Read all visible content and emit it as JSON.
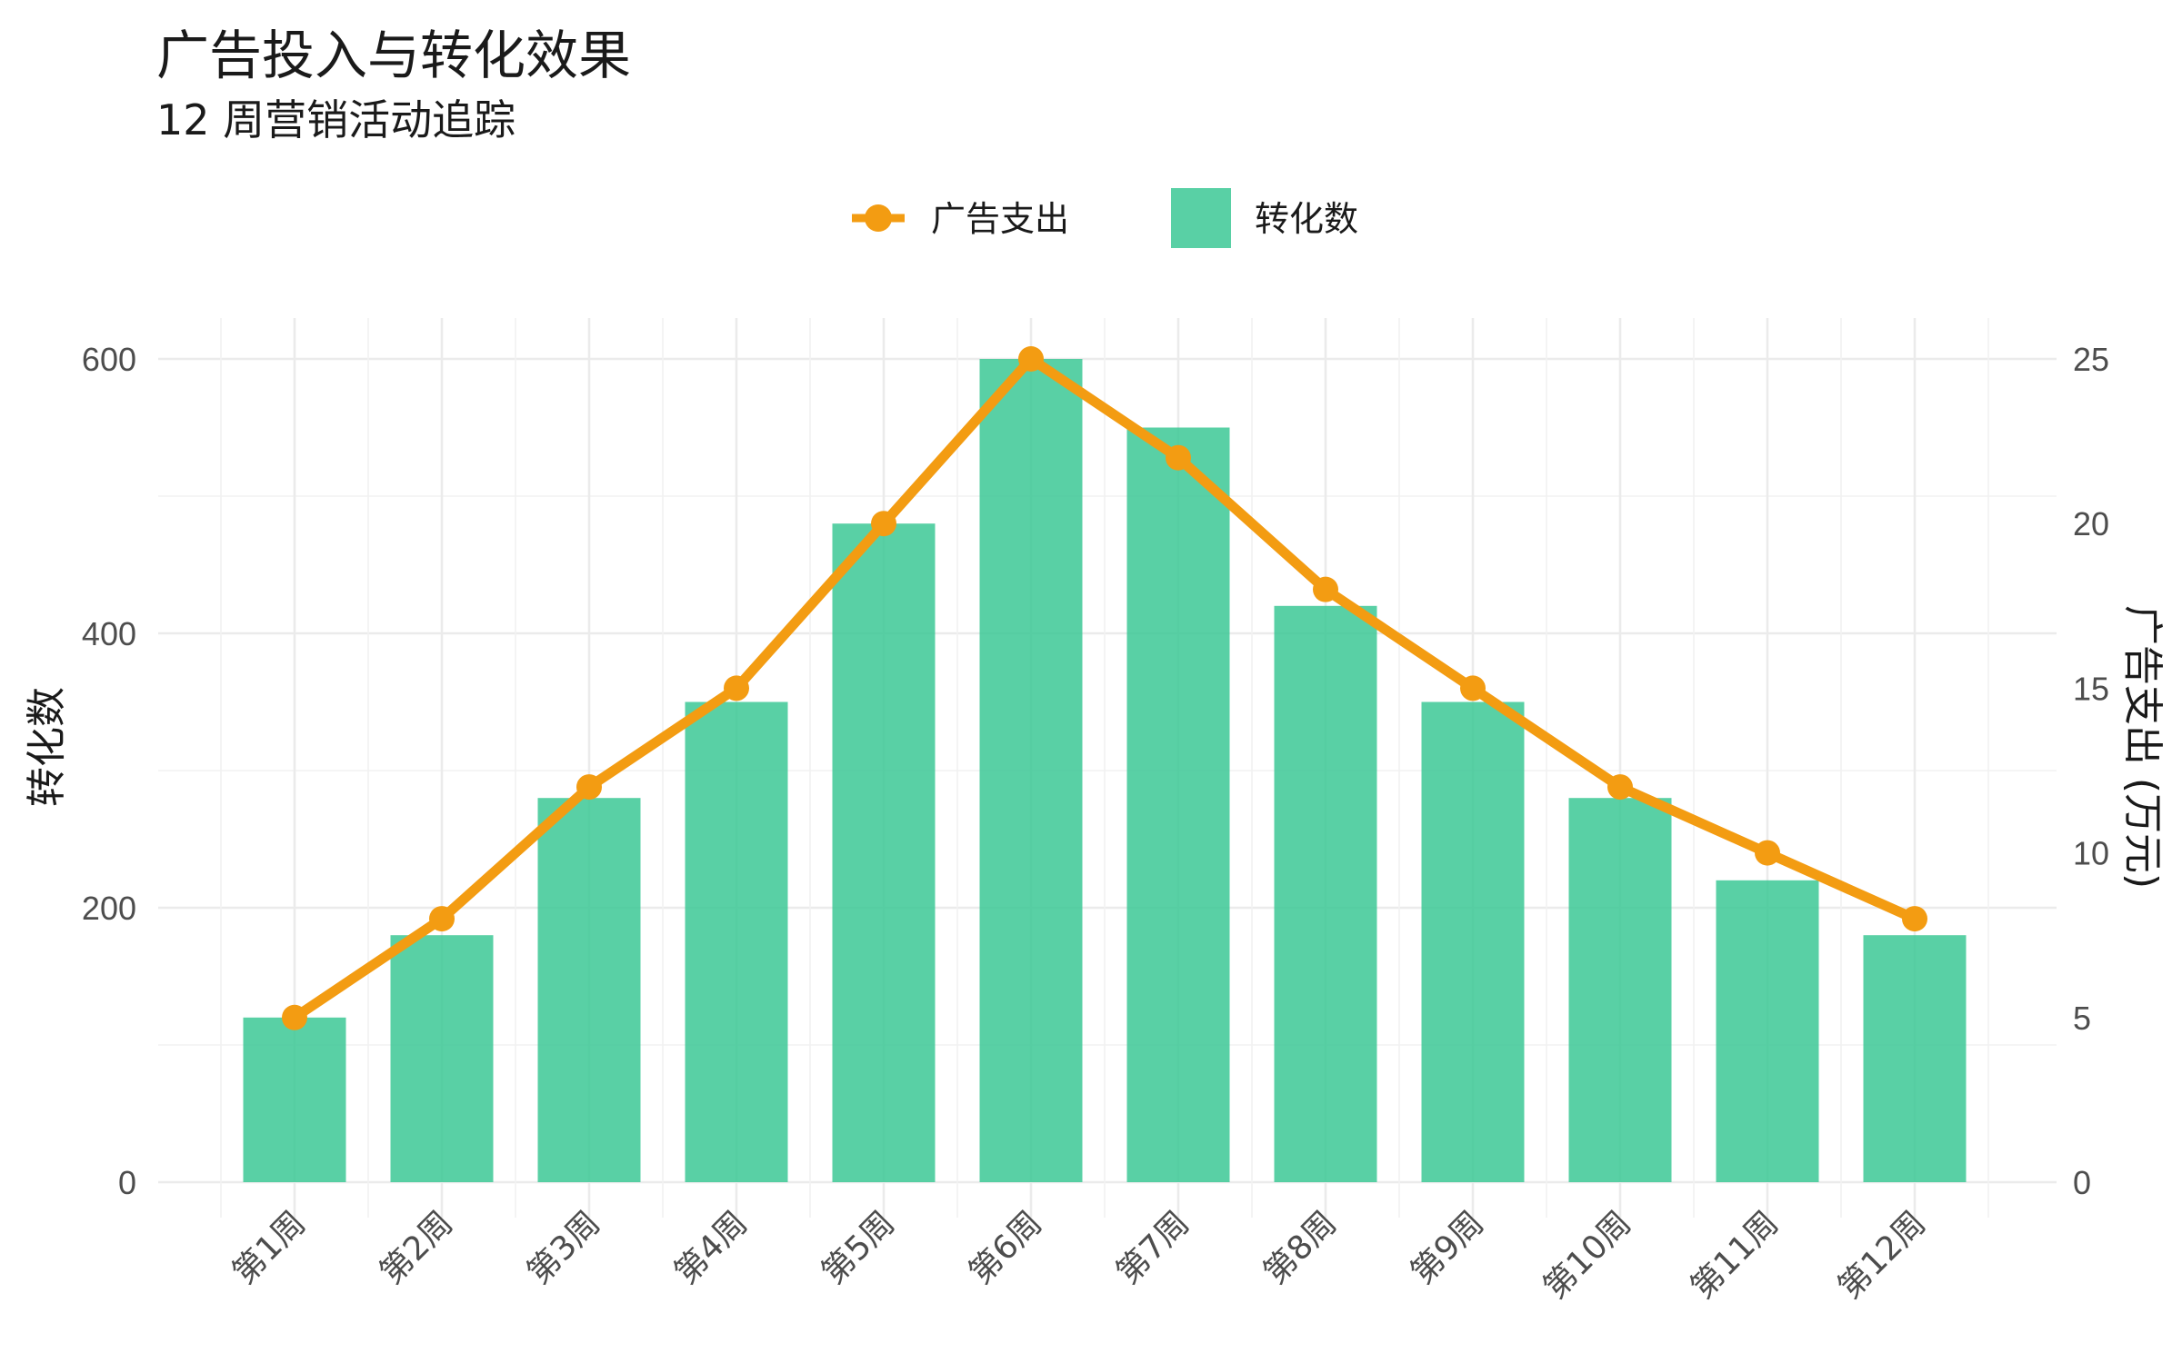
{
  "chart_data": {
    "type": "bar",
    "title": "广告投入与转化效果",
    "subtitle": "12 周营销活动追踪",
    "categories": [
      "第1周",
      "第2周",
      "第3周",
      "第4周",
      "第5周",
      "第6周",
      "第7周",
      "第8周",
      "第9周",
      "第10周",
      "第11周",
      "第12周"
    ],
    "series": [
      {
        "name": "转化数",
        "type": "bar",
        "axis": "left",
        "color": "#3CC895",
        "values": [
          120,
          180,
          280,
          350,
          480,
          600,
          550,
          420,
          350,
          280,
          220,
          180
        ]
      },
      {
        "name": "广告支出",
        "type": "line",
        "axis": "right",
        "color": "#F39C12",
        "values": [
          5,
          8,
          12,
          15,
          20,
          25,
          22,
          18,
          15,
          12,
          10,
          8
        ]
      }
    ],
    "ylabel_left": "转化数",
    "ylabel_right": "广告支出 (万元)",
    "ylim_left": [
      0,
      600
    ],
    "ylim_right": [
      0,
      25
    ],
    "yticks_left": [
      0,
      200,
      400,
      600
    ],
    "yticks_right": [
      0,
      5,
      10,
      15,
      20,
      25
    ],
    "legend": {
      "position": "top",
      "items": [
        "广告支出",
        "转化数"
      ]
    },
    "grid": true
  }
}
